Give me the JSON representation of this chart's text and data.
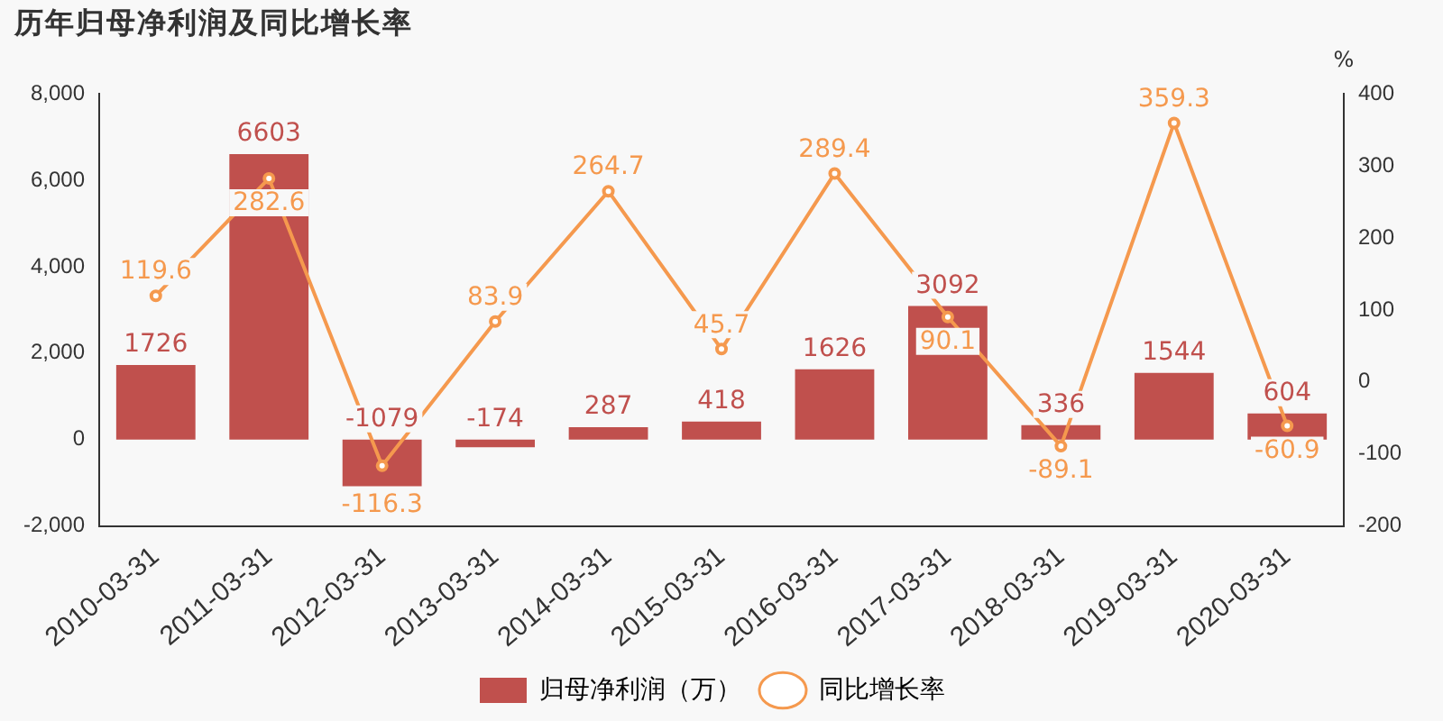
{
  "chart_data": {
    "type": "bar",
    "title": "历年归母净利润及同比增长率",
    "y2label": "%",
    "categories": [
      "2010-03-31",
      "2011-03-31",
      "2012-03-31",
      "2013-03-31",
      "2014-03-31",
      "2015-03-31",
      "2016-03-31",
      "2017-03-31",
      "2018-03-31",
      "2019-03-31",
      "2020-03-31"
    ],
    "series": [
      {
        "name": "归母净利润（万）",
        "color": "#c0504d",
        "values": [
          1726,
          6603,
          -1079,
          -174,
          287,
          418,
          1626,
          3092,
          336,
          1544,
          604
        ]
      },
      {
        "name": "同比增长率",
        "type": "line",
        "axis": "y2",
        "color": "#f5994e",
        "marker": "circle",
        "values": [
          119.6,
          282.6,
          -116.3,
          83.9,
          264.7,
          45.7,
          289.4,
          90.1,
          -89.1,
          359.3,
          -60.9
        ]
      }
    ],
    "ylim": [
      -2000,
      8000
    ],
    "yticks": [
      {
        "value": -2000,
        "label": "-2,000"
      },
      0,
      {
        "value": 2000,
        "label": "2,000"
      },
      {
        "value": 4000,
        "label": "4,000"
      },
      {
        "value": 6000,
        "label": "6,000"
      },
      {
        "value": 8000,
        "label": "8,000"
      }
    ],
    "y2lim": [
      -200,
      400
    ],
    "y2ticks": [
      -200,
      -100,
      0,
      100,
      200,
      300,
      400
    ],
    "grid": false,
    "legend": "bottom",
    "data_labels": true
  }
}
